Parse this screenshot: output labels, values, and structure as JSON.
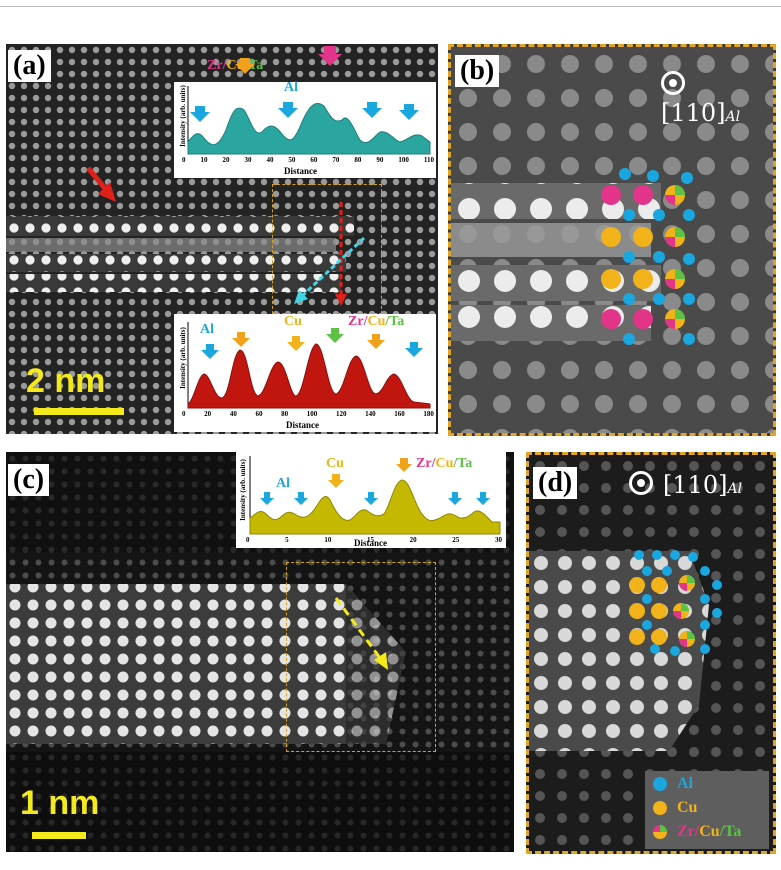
{
  "panels": {
    "a": {
      "label": "(a)",
      "scale": "2 nm"
    },
    "b": {
      "label": "(b)",
      "zone_axis": "[110]",
      "zone_axis_sub": "Al"
    },
    "c": {
      "label": "(c)",
      "scale": "1 nm"
    },
    "d": {
      "label": "(d)",
      "zone_axis": "[110]",
      "zone_axis_sub": "Al"
    }
  },
  "profiles": {
    "a_top": {
      "ylabel": "Intensity (arb. units)",
      "xlabel": "Distance",
      "ticks": [
        "0",
        "10",
        "20",
        "30",
        "40",
        "50",
        "60",
        "70",
        "80",
        "90",
        "100",
        "110"
      ],
      "ann_zrcuta": [
        "Zr",
        "/",
        "Cu",
        "/",
        "Ta"
      ],
      "ann_zr": "Zr",
      "ann_al": "Al",
      "fill": "#2aa5a0"
    },
    "a_bottom": {
      "ylabel": "Intensity (arb. units)",
      "xlabel": "Distance",
      "ticks": [
        "0",
        "20",
        "40",
        "60",
        "80",
        "100",
        "120",
        "140",
        "160",
        "180"
      ],
      "ann_al": "Al",
      "ann_cu": "Cu",
      "ann_zrcuta": [
        "Zr",
        "/",
        "Cu",
        "/",
        "Ta"
      ],
      "fill": "#c0160f"
    },
    "c": {
      "ylabel": "Intensity (arb. units)",
      "xlabel": "Distance",
      "ticks": [
        "0",
        "5",
        "10",
        "15",
        "20",
        "25",
        "30"
      ],
      "ann_al": "Al",
      "ann_cu": "Cu",
      "ann_zrcuta": [
        "Zr",
        "/",
        "Cu",
        "/",
        "Ta"
      ],
      "fill": "#c4b900"
    }
  },
  "legend": {
    "al": "Al",
    "cu": "Cu",
    "zrcuta": [
      "Zr",
      "/",
      "Cu",
      "/",
      "Ta"
    ]
  },
  "colors": {
    "al": "#1aa7e0",
    "cu": "#f2b21a",
    "zr": "#e2358a",
    "ta": "#5cc244",
    "scale": "#f4ea1b",
    "frame": "#e3a323",
    "arrow_red": "#e0201a",
    "arrow_cyan": "#3fd6e6"
  }
}
